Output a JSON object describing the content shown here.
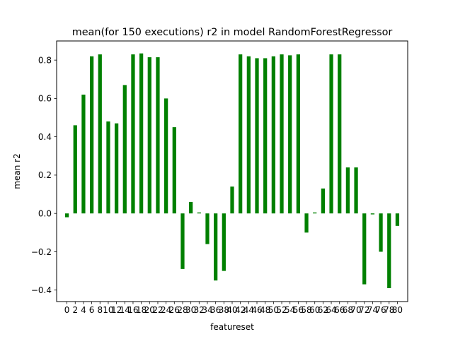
{
  "chart_data": {
    "type": "bar",
    "title": "mean(for 150 executions) r2 in model RandomForestRegressor",
    "xlabel": "featureset",
    "ylabel": "mean r2",
    "xlim": [
      -2.5,
      82.5
    ],
    "ylim": [
      -0.46,
      0.9
    ],
    "yticks": [
      -0.4,
      -0.2,
      0.0,
      0.2,
      0.4,
      0.6,
      0.8
    ],
    "ytick_labels": [
      "−0.4",
      "−0.2",
      "0.0",
      "0.2",
      "0.4",
      "0.6",
      "0.8"
    ],
    "xticks": [
      0,
      2,
      4,
      6,
      8,
      10,
      12,
      14,
      16,
      18,
      20,
      22,
      24,
      26,
      28,
      30,
      32,
      34,
      36,
      38,
      40,
      42,
      44,
      46,
      48,
      50,
      52,
      54,
      56,
      58,
      60,
      62,
      64,
      66,
      68,
      70,
      72,
      74,
      76,
      78,
      80
    ],
    "xtick_labels": [
      "0",
      "2",
      "4",
      "6",
      "8",
      "10",
      "12",
      "14",
      "16",
      "18",
      "20",
      "22",
      "24",
      "26",
      "28",
      "30",
      "32",
      "34",
      "36",
      "38",
      "40",
      "42",
      "44",
      "46",
      "48",
      "50",
      "52",
      "54",
      "56",
      "58",
      "60",
      "62",
      "64",
      "66",
      "68",
      "70",
      "72",
      "74",
      "76",
      "78",
      "80"
    ],
    "categories": [
      0,
      2,
      4,
      6,
      8,
      10,
      12,
      14,
      16,
      18,
      20,
      22,
      24,
      26,
      28,
      30,
      32,
      34,
      36,
      38,
      40,
      42,
      44,
      46,
      48,
      50,
      52,
      54,
      56,
      58,
      60,
      62,
      64,
      66,
      68,
      70,
      72,
      74,
      76,
      78,
      80
    ],
    "values": [
      -0.02,
      0.46,
      0.62,
      0.82,
      0.83,
      0.48,
      0.47,
      0.67,
      0.83,
      0.835,
      0.815,
      0.815,
      0.6,
      0.45,
      -0.29,
      0.06,
      0.005,
      -0.16,
      -0.35,
      -0.3,
      0.14,
      0.83,
      0.82,
      0.81,
      0.81,
      0.82,
      0.83,
      0.825,
      0.83,
      -0.1,
      0.005,
      0.13,
      0.83,
      0.83,
      0.24,
      0.24,
      -0.37,
      -0.005,
      -0.2,
      -0.39,
      -0.065
    ],
    "bar_color": "#008000",
    "grid": false,
    "legend": "none"
  }
}
